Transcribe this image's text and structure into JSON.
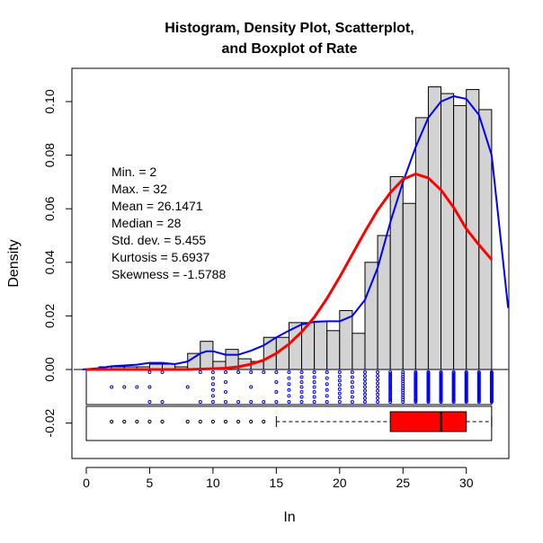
{
  "chart_data": {
    "type": "histogram",
    "title_line1": "Histogram, Density Plot, Scatterplot,",
    "title_line2": "and Boxplot of Rate",
    "xlabel": "In",
    "ylabel": "Density",
    "xlim": [
      -1,
      33.3
    ],
    "ylim": [
      -0.027,
      0.11
    ],
    "x_ticks": [
      0,
      5,
      10,
      15,
      20,
      25,
      30
    ],
    "y_ticks": [
      -0.02,
      0.0,
      0.02,
      0.04,
      0.06,
      0.08,
      0.1
    ],
    "y_tick_labels": [
      "-0.02",
      "0.00",
      "0.02",
      "0.04",
      "0.06",
      "0.08",
      "0.10"
    ],
    "histogram": {
      "bin_width": 1,
      "bins_start": [
        1,
        2,
        3,
        4,
        5,
        6,
        7,
        8,
        9,
        10,
        11,
        12,
        13,
        14,
        15,
        16,
        17,
        18,
        19,
        20,
        21,
        22,
        23,
        24,
        25,
        26,
        27,
        28,
        29,
        30,
        31
      ],
      "densities": [
        0.001,
        0.001,
        0.001,
        0.001,
        0.002,
        0.002,
        0.001,
        0.006,
        0.0105,
        0.003,
        0.0075,
        0.004,
        0.003,
        0.012,
        0.012,
        0.0175,
        0.0175,
        0.018,
        0.0145,
        0.022,
        0.0135,
        0.04,
        0.05,
        0.072,
        0.062,
        0.094,
        0.1055,
        0.103,
        0.0985,
        0.1045,
        0.097
      ],
      "fill": "#d3d3d3"
    },
    "series": [
      {
        "name": "",
        "kind": "kernel-density",
        "color": "#0000ff",
        "x": [
          -0.3,
          1,
          2,
          3,
          4,
          5,
          6,
          7,
          8,
          9,
          9.5,
          10,
          11,
          12,
          13,
          14,
          15,
          16,
          17,
          18,
          19,
          20,
          21,
          22,
          23,
          24,
          25,
          26,
          27,
          28,
          29,
          30,
          31,
          32,
          33.3
        ],
        "y": [
          0.0,
          0.0005,
          0.0012,
          0.0015,
          0.0018,
          0.0025,
          0.0025,
          0.002,
          0.003,
          0.006,
          0.0068,
          0.0068,
          0.0055,
          0.0055,
          0.007,
          0.009,
          0.012,
          0.0145,
          0.0168,
          0.0178,
          0.018,
          0.018,
          0.02,
          0.026,
          0.038,
          0.055,
          0.07,
          0.083,
          0.094,
          0.1,
          0.102,
          0.101,
          0.095,
          0.08,
          0.023
        ]
      },
      {
        "name": "",
        "kind": "normal-density",
        "color": "#ff0000",
        "x": [
          0,
          2,
          4,
          6,
          8,
          10,
          11,
          12,
          13,
          14,
          15,
          16,
          17,
          18,
          19,
          20,
          21,
          22,
          23,
          24,
          25,
          26,
          27,
          28,
          29,
          30,
          31,
          32
        ],
        "y": [
          0.0,
          0.0,
          0.0,
          0.0,
          0.0,
          0.0003,
          0.0005,
          0.001,
          0.002,
          0.0035,
          0.006,
          0.0095,
          0.014,
          0.0195,
          0.0265,
          0.0345,
          0.043,
          0.0515,
          0.0595,
          0.066,
          0.071,
          0.073,
          0.0715,
          0.067,
          0.0605,
          0.0525,
          0.0465,
          0.041
        ]
      }
    ],
    "stats": {
      "min": "Min. = 2",
      "max": "Max. = 32",
      "mean": "Mean = 26.1471",
      "median": "Median = 28",
      "sd": "Std. dev. = 5.455",
      "kurtosis": "Kurtosis = 5.6937",
      "skewness": "Skewness = -1.5788"
    },
    "stripchart": {
      "color": "#0000ff",
      "x_values": [
        2,
        3,
        4,
        5,
        6,
        8,
        9,
        10,
        11,
        12,
        13,
        14,
        15,
        16,
        17,
        18,
        19,
        20,
        21,
        22,
        23,
        24,
        25,
        26,
        27,
        28,
        29,
        30,
        31,
        32
      ],
      "counts": [
        1,
        1,
        1,
        3,
        2,
        1,
        2,
        6,
        4,
        2,
        3,
        2,
        4,
        6,
        7,
        7,
        6,
        8,
        7,
        9,
        9,
        18,
        14,
        27,
        30,
        28,
        28,
        30,
        28,
        29
      ]
    },
    "boxplot": {
      "whisker_low": 15,
      "q1": 24,
      "median": 28,
      "q3": 30,
      "whisker_high": 32,
      "outliers": [
        2,
        3,
        4,
        5,
        6,
        8,
        9,
        10,
        11,
        12,
        13,
        14
      ],
      "fill": "#ff0000"
    },
    "grid": false,
    "legend": "none"
  }
}
